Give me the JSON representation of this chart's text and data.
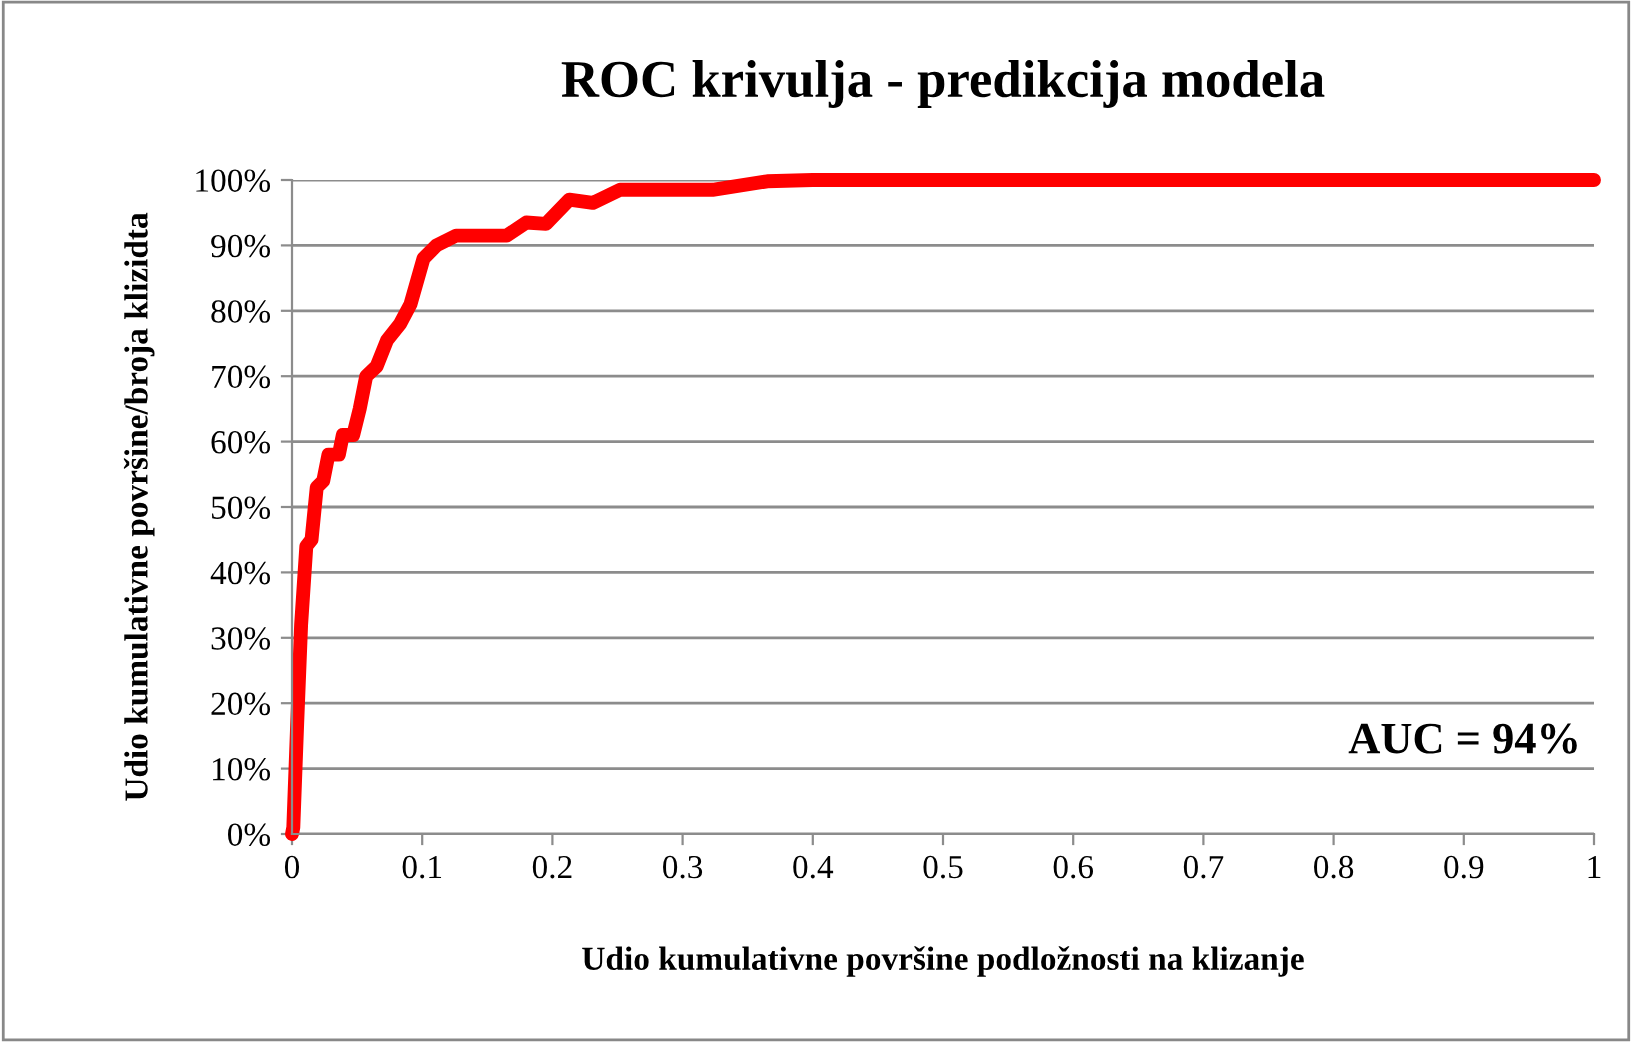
{
  "chart_data": {
    "type": "line",
    "title": "ROC krivulja - predikcija modela",
    "xlabel": "Udio kumulativne površine podložnosti na klizanje",
    "ylabel": "Udio kumulativne površine/broja klizidta",
    "annotations": [
      "AUC = 94%"
    ],
    "series": [
      {
        "color": "#ff0000",
        "x": [
          0,
          0.001,
          0.004,
          0.007,
          0.011,
          0.015,
          0.019,
          0.024,
          0.028,
          0.036,
          0.039,
          0.047,
          0.052,
          0.057,
          0.065,
          0.073,
          0.083,
          0.091,
          0.101,
          0.111,
          0.126,
          0.165,
          0.18,
          0.195,
          0.213,
          0.231,
          0.252,
          0.323,
          0.365,
          0.4,
          1
        ],
        "values": [
          0,
          1,
          17,
          32,
          44,
          45,
          53,
          54,
          58,
          58,
          61,
          61,
          65,
          70,
          71.5,
          75.5,
          78,
          81,
          88,
          90,
          91.5,
          91.5,
          93.5,
          93.3,
          97,
          96.5,
          98.5,
          98.5,
          99.8,
          100,
          100
        ]
      }
    ],
    "xlim": [
      0,
      1
    ],
    "xticks": [
      0,
      0.1,
      0.2,
      0.3,
      0.4,
      0.5,
      0.6,
      0.7,
      0.8,
      0.9,
      1
    ],
    "ylim": [
      0,
      100
    ],
    "yticks": [
      {
        "value": 0,
        "label": "0%"
      },
      {
        "value": 10,
        "label": "10%"
      },
      {
        "value": 20,
        "label": "20%"
      },
      {
        "value": 30,
        "label": "30%"
      },
      {
        "value": 40,
        "label": "40%"
      },
      {
        "value": 50,
        "label": "50%"
      },
      {
        "value": 60,
        "label": "60%"
      },
      {
        "value": 70,
        "label": "70%"
      },
      {
        "value": 80,
        "label": "80%"
      },
      {
        "value": 90,
        "label": "90%"
      },
      {
        "value": 100,
        "label": "100%"
      }
    ],
    "grid": "y",
    "legend": false,
    "line_style": "solid",
    "marker": "none"
  }
}
